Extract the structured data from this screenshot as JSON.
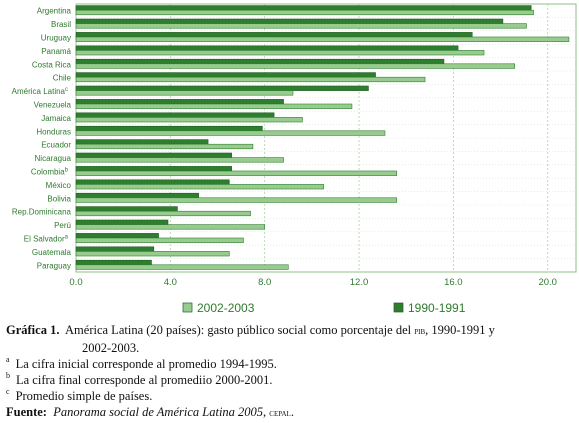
{
  "chart_data": {
    "type": "bar",
    "orientation": "horizontal",
    "categories": [
      "Argentina",
      "Brasil",
      "Uruguay",
      "Panamá",
      "Costa Rica",
      "Chile",
      "América Latina",
      "Venezuela",
      "Jamaica",
      "Honduras",
      "Ecuador",
      "Nicaragua",
      "Colombia",
      "México",
      "Bolivia",
      "Rep.Dominicana",
      "Perú",
      "El Salvador",
      "Guatemala",
      "Paraguay"
    ],
    "category_superscripts": [
      "",
      "",
      "",
      "",
      "",
      "",
      "c",
      "",
      "",
      "",
      "",
      "",
      "b",
      "",
      "",
      "",
      "",
      "a",
      "",
      ""
    ],
    "series": [
      {
        "name": "1990-1991",
        "color": "#2f7d2f",
        "values": [
          19.3,
          18.1,
          16.8,
          16.2,
          15.6,
          12.7,
          12.4,
          8.8,
          8.4,
          7.9,
          5.6,
          6.6,
          6.6,
          6.5,
          5.2,
          4.3,
          3.9,
          3.5,
          3.3,
          3.2
        ]
      },
      {
        "name": "2002-2003",
        "color": "#98cc8f",
        "values": [
          19.4,
          19.1,
          20.9,
          17.3,
          18.6,
          14.8,
          9.2,
          11.7,
          9.6,
          13.1,
          7.5,
          8.8,
          13.6,
          10.5,
          13.6,
          7.4,
          8.0,
          7.1,
          6.5,
          9.0
        ]
      }
    ],
    "legend_order": [
      "2002-2003",
      "1990-1991"
    ],
    "legend_placement": "bottom",
    "xlim": [
      0,
      21.2
    ],
    "xticks": [
      0,
      4,
      8,
      12,
      16,
      20
    ],
    "xtick_labels": [
      "0.0",
      "4.0",
      "8.0",
      "12.0",
      "16.0",
      "20.0"
    ],
    "grid": true
  },
  "caption": {
    "label": "Gráfica 1.",
    "text_before": "América Latina (20 países): gasto público social como porcentaje del ",
    "pib": "pib",
    "text_after": ", 1990-1991 y",
    "line2": "2002-2003.",
    "notes": [
      {
        "mark": "a",
        "text": "La cifra inicial corresponde al promedio 1994-1995."
      },
      {
        "mark": "b",
        "text": "La cifra final corresponde al promediio 2000-2001."
      },
      {
        "mark": "c",
        "text": "Promedio simple de países."
      }
    ],
    "source_label": "Fuente:",
    "source_title": "Panorama social de América Latina 2005",
    "source_sep": ", ",
    "source_org": "cepal",
    "source_end": "."
  }
}
